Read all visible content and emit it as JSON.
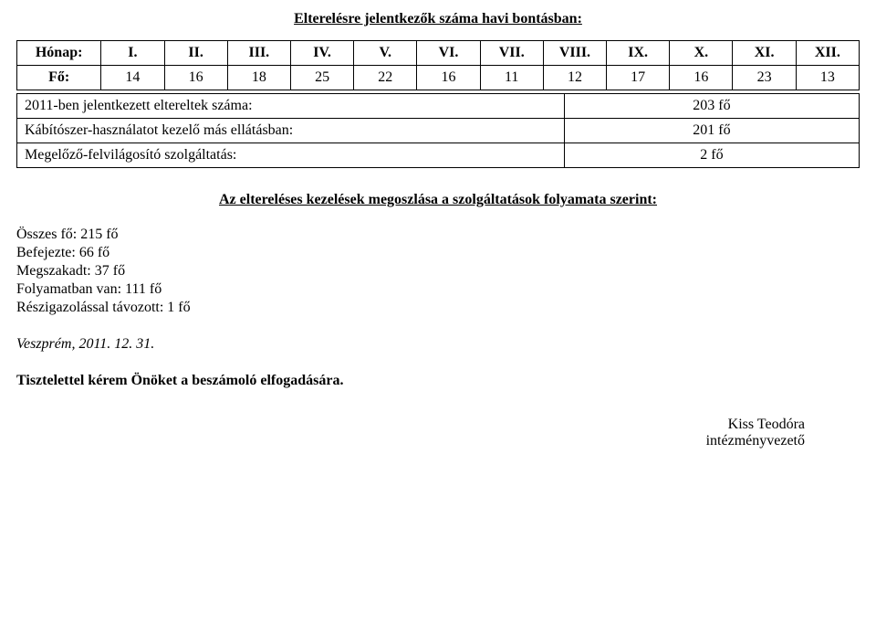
{
  "title": "Elterelésre jelentkezők száma havi bontásban:",
  "table": {
    "header_label": "Hónap:",
    "months": [
      "I.",
      "II.",
      "III.",
      "IV.",
      "V.",
      "VI.",
      "VII.",
      "VIII.",
      "IX.",
      "X.",
      "XI.",
      "XII."
    ],
    "row_label": "Fő:",
    "values": [
      "14",
      "16",
      "18",
      "25",
      "22",
      "16",
      "11",
      "12",
      "17",
      "16",
      "23",
      "13"
    ],
    "col_widths_pct": [
      10.0,
      7.5,
      7.5,
      7.5,
      7.5,
      7.5,
      7.5,
      7.5,
      7.5,
      7.5,
      7.5,
      7.5,
      7.5
    ],
    "border_color": "#000000",
    "font_size_pt": 12
  },
  "stats": {
    "rows": [
      {
        "label": "2011-ben jelentkezett eltereltek száma:",
        "value": "203 fő"
      },
      {
        "label": "Kábítószer-használatot kezelő más ellátásban:",
        "value": "201 fő"
      },
      {
        "label": "Megelőző-felvilágosító szolgáltatás:",
        "value": "2 fő"
      }
    ],
    "label_width_pct": 65,
    "value_width_pct": 35
  },
  "subheading": "Az eltereléses kezelések megoszlása a szolgáltatások folyamata szerint:",
  "summary_lines": [
    "Összes fő: 215 fő",
    "Befejezte: 66 fő",
    "Megszakadt: 37 fő",
    "Folyamatban van: 111 fő",
    "Részigazolással távozott: 1 fő"
  ],
  "date_line": "Veszprém, 2011. 12. 31.",
  "closing": "Tisztelettel kérem Önöket a beszámoló elfogadására.",
  "signature": {
    "name": "Kiss Teodóra",
    "role": "intézményvezető"
  },
  "colors": {
    "text": "#000000",
    "background": "#ffffff"
  }
}
